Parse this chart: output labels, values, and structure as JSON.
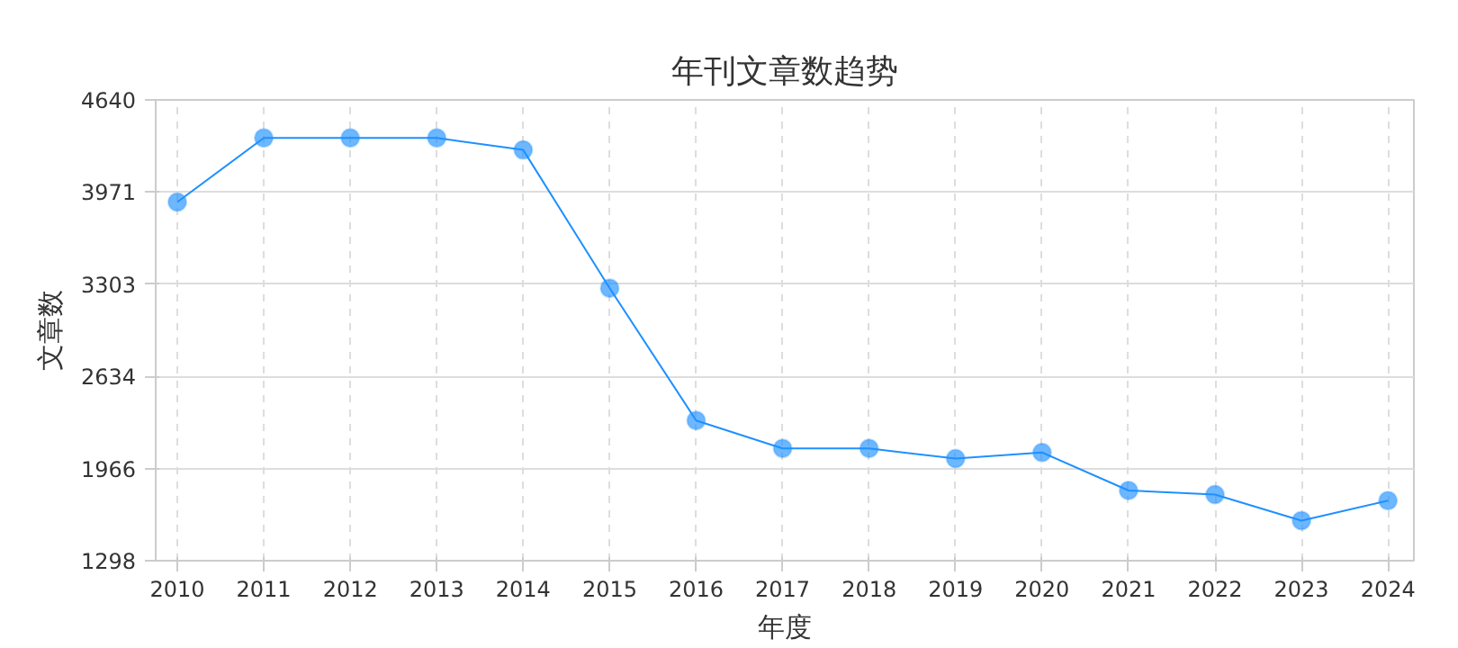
{
  "chart_data": {
    "type": "line",
    "title": "年刊文章数趋势",
    "xlabel": "年度",
    "ylabel": "文章数",
    "x": [
      2010,
      2011,
      2012,
      2013,
      2014,
      2015,
      2016,
      2017,
      2018,
      2019,
      2020,
      2021,
      2022,
      2023,
      2024
    ],
    "series": [
      {
        "color": "#1e90ff",
        "values": [
          3899,
          4364,
          4364,
          4364,
          4277,
          3274,
          2315,
          2112,
          2112,
          2039,
          2083,
          1807,
          1778,
          1589,
          1734
        ]
      }
    ],
    "xlim": [
      2009.75,
      2024.3
    ],
    "xticks": [
      2010,
      2011,
      2012,
      2013,
      2014,
      2015,
      2016,
      2017,
      2018,
      2019,
      2020,
      2021,
      2022,
      2023,
      2024
    ],
    "ylim": [
      1298,
      4640
    ],
    "yticks": [
      1298,
      1966,
      2634,
      3303,
      3971,
      4640
    ],
    "grid": true,
    "marker": "circle",
    "line_style": "solid"
  }
}
